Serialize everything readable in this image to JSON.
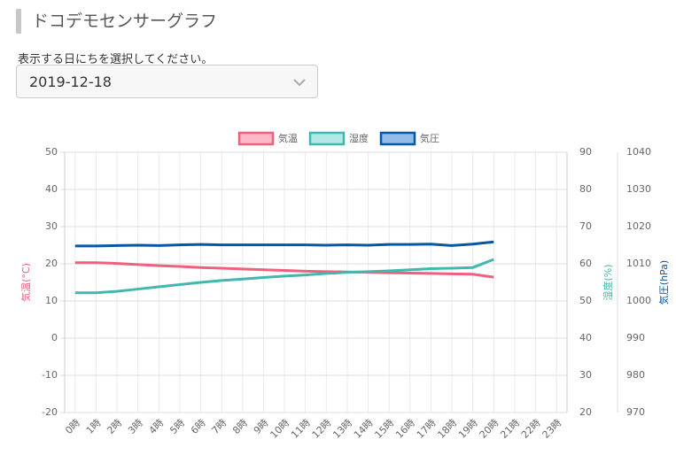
{
  "header": {
    "title": "ドコデモセンサーグラフ",
    "prompt": "表示する日にちを選択してください。"
  },
  "select": {
    "value": "2019-12-18"
  },
  "chart_data": {
    "type": "line",
    "categories": [
      "0時",
      "1時",
      "2時",
      "3時",
      "4時",
      "5時",
      "6時",
      "7時",
      "8時",
      "9時",
      "10時",
      "11時",
      "12時",
      "13時",
      "14時",
      "15時",
      "16時",
      "17時",
      "18時",
      "19時",
      "20時",
      "21時",
      "22時",
      "23時"
    ],
    "series": [
      {
        "name": "気温",
        "color": "#f0607e",
        "legend_fill": "#ffb8c8",
        "axis": "y",
        "values": [
          20.3,
          20.3,
          20.1,
          19.8,
          19.5,
          19.3,
          19.0,
          18.8,
          18.6,
          18.4,
          18.2,
          18.0,
          17.9,
          17.8,
          17.7,
          17.6,
          17.5,
          17.4,
          17.3,
          17.2,
          16.4,
          null,
          null,
          null
        ]
      },
      {
        "name": "湿度",
        "color": "#40b8b0",
        "legend_fill": "#b4e8e4",
        "axis": "y2",
        "values": [
          52.2,
          52.2,
          52.6,
          53.2,
          53.8,
          54.4,
          55.0,
          55.5,
          55.9,
          56.3,
          56.7,
          57.0,
          57.4,
          57.7,
          57.9,
          58.1,
          58.4,
          58.7,
          58.8,
          59.0,
          61.2,
          null,
          null,
          null
        ]
      },
      {
        "name": "気圧",
        "color": "#0657a4",
        "legend_fill": "#94bce8",
        "axis": "y3",
        "values": [
          1014.8,
          1014.8,
          1014.9,
          1015.0,
          1014.9,
          1015.1,
          1015.2,
          1015.1,
          1015.1,
          1015.1,
          1015.1,
          1015.1,
          1015.0,
          1015.1,
          1015.0,
          1015.2,
          1015.2,
          1015.3,
          1014.9,
          1015.3,
          1015.9,
          null,
          null,
          null
        ]
      }
    ],
    "ylabel": "気温(°C)",
    "y2label": "湿度(%)",
    "y3label": "気圧(hPa)",
    "ylim": [
      -20,
      50
    ],
    "yticks": [
      -20,
      -10,
      0,
      10,
      20,
      30,
      40,
      50
    ],
    "y2lim": [
      20,
      90
    ],
    "y2ticks": [
      20,
      30,
      40,
      50,
      60,
      70,
      80,
      90
    ],
    "y3lim": [
      970,
      1040
    ],
    "y3ticks": [
      970,
      980,
      990,
      1000,
      1010,
      1020,
      1030,
      1040
    ],
    "grid": true
  }
}
